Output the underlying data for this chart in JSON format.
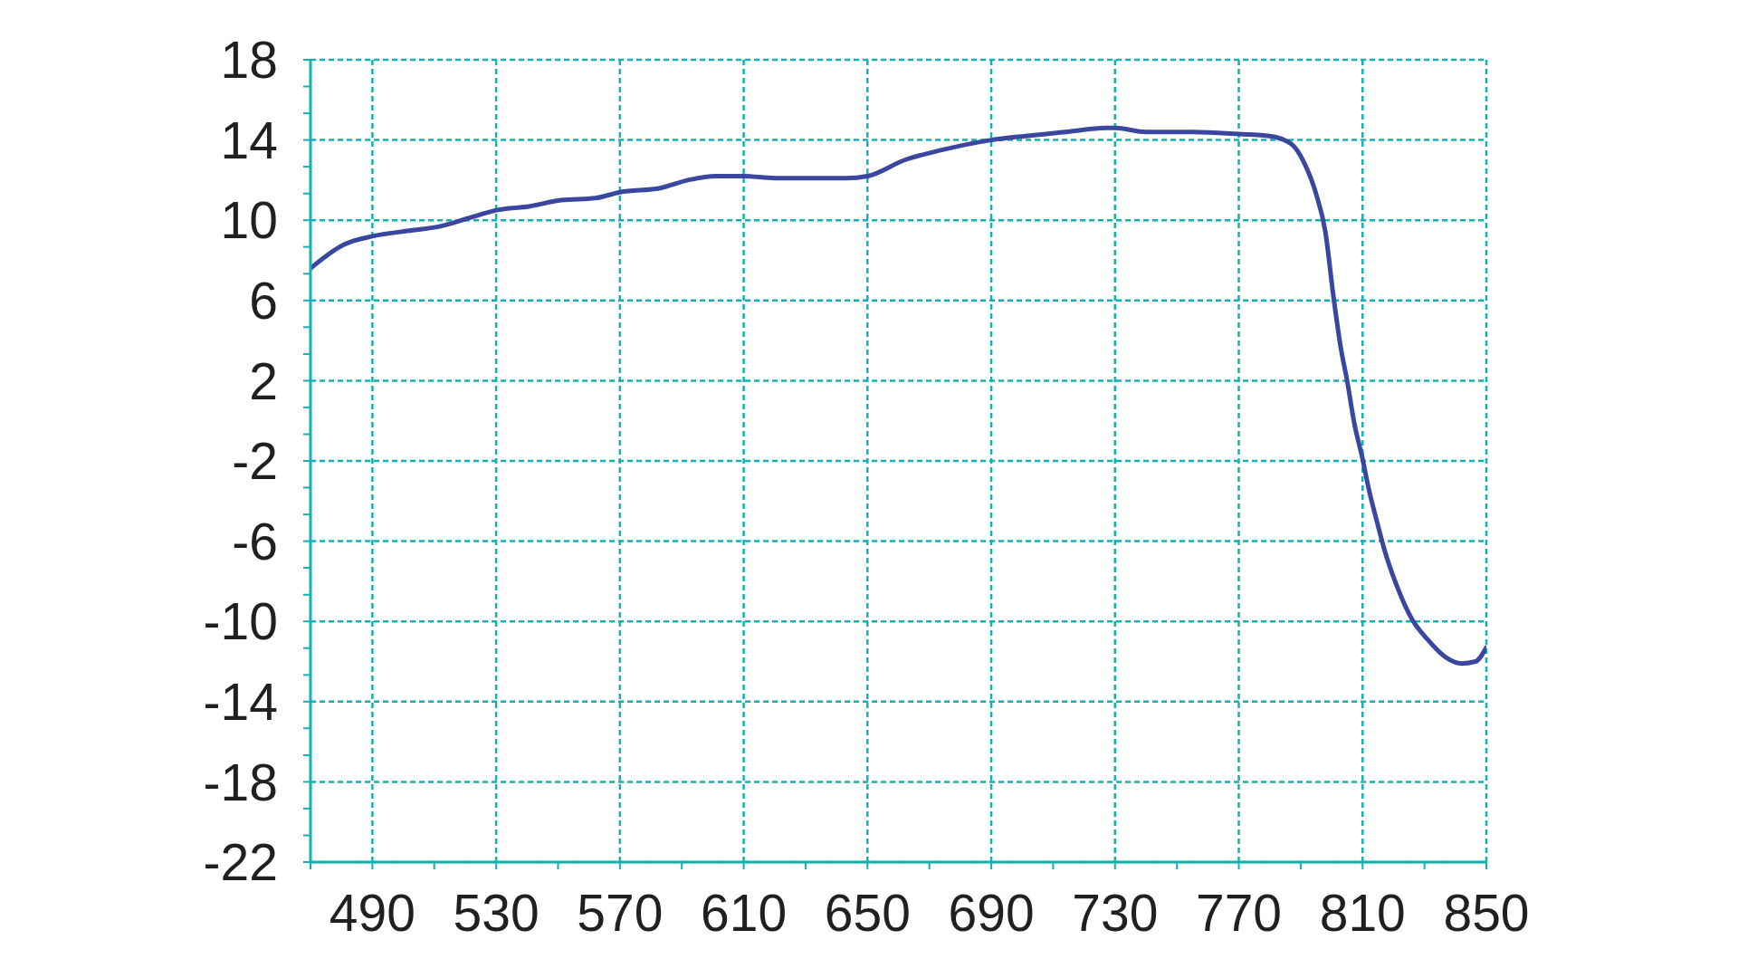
{
  "chart_data": {
    "type": "line",
    "x": [
      470,
      481,
      490,
      503,
      512,
      521,
      530,
      541,
      551,
      562,
      570,
      583,
      592,
      601,
      610,
      620,
      632,
      643,
      650,
      662,
      674,
      690,
      701,
      714,
      727,
      730,
      740,
      755,
      770,
      780,
      787,
      791,
      795,
      798,
      800.5,
      803,
      805,
      807.3,
      810,
      812,
      814.6,
      817,
      821,
      826,
      831,
      837,
      842,
      846.5,
      850
    ],
    "values": [
      7.6,
      8.8,
      9.2,
      9.5,
      9.7,
      10.1,
      10.5,
      10.7,
      11.0,
      11.1,
      11.4,
      11.6,
      12.0,
      12.2,
      12.2,
      12.1,
      12.1,
      12.1,
      12.2,
      13.0,
      13.5,
      14.0,
      14.2,
      14.4,
      14.6,
      14.6,
      14.4,
      14.4,
      14.3,
      14.2,
      13.8,
      12.9,
      11.3,
      9.4,
      6.3,
      3.6,
      2.0,
      -0.1,
      -1.9,
      -3.4,
      -5.0,
      -6.4,
      -8.2,
      -9.9,
      -10.9,
      -11.8,
      -12.1,
      -12.0,
      -11.3
    ],
    "color": "#3a47a0",
    "xlim": [
      470,
      850
    ],
    "xticks": [
      {
        "value": 470,
        "label": null
      },
      490,
      {
        "value": 510,
        "label": null
      },
      530,
      {
        "value": 550,
        "label": null
      },
      570,
      {
        "value": 590,
        "label": null
      },
      610,
      {
        "value": 630,
        "label": null
      },
      650,
      {
        "value": 670,
        "label": null
      },
      690,
      {
        "value": 710,
        "label": null
      },
      730,
      {
        "value": 750,
        "label": null
      },
      770,
      {
        "value": 790,
        "label": null
      },
      810,
      {
        "value": 830,
        "label": null
      },
      850
    ],
    "ylim": [
      -22,
      18
    ],
    "yticks": [
      -22,
      {
        "value": -20.67,
        "label": null
      },
      {
        "value": -19.33,
        "label": null
      },
      -18,
      {
        "value": -16.67,
        "label": null
      },
      {
        "value": -15.33,
        "label": null
      },
      -14,
      {
        "value": -12.67,
        "label": null
      },
      {
        "value": -11.33,
        "label": null
      },
      -10,
      {
        "value": -8.67,
        "label": null
      },
      {
        "value": -7.33,
        "label": null
      },
      -6,
      {
        "value": -4.67,
        "label": null
      },
      {
        "value": -3.33,
        "label": null
      },
      -2,
      {
        "value": -0.67,
        "label": null
      },
      {
        "value": 0.67,
        "label": null
      },
      2,
      {
        "value": 3.33,
        "label": null
      },
      {
        "value": 4.67,
        "label": null
      },
      6,
      {
        "value": 7.33,
        "label": null
      },
      {
        "value": 8.67,
        "label": null
      },
      10,
      {
        "value": 11.33,
        "label": null
      },
      {
        "value": 12.67,
        "label": null
      },
      14,
      {
        "value": 15.33,
        "label": null
      },
      {
        "value": 16.67,
        "label": null
      },
      18
    ],
    "grid": true,
    "marker": "none",
    "line_style": "solid"
  }
}
